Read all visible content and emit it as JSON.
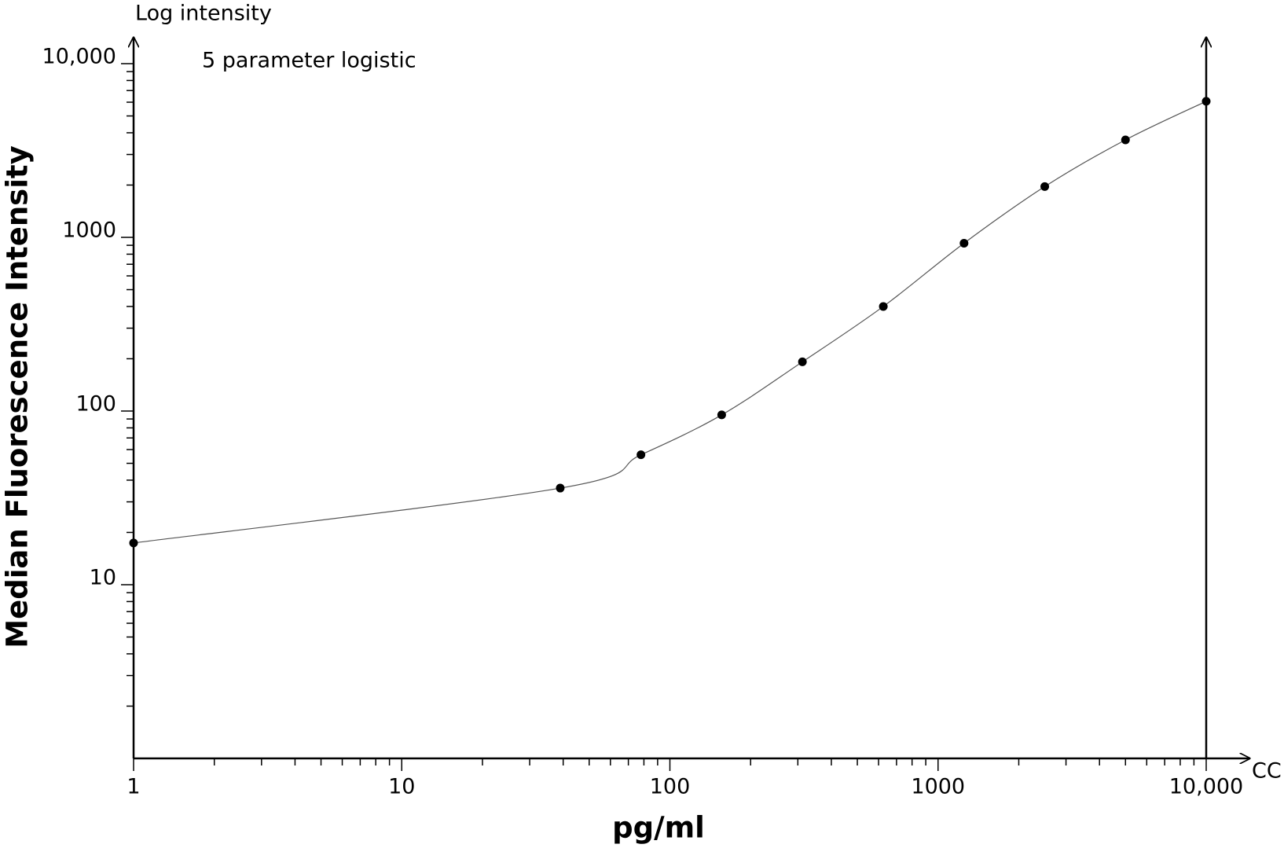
{
  "chart_data": {
    "type": "scatter",
    "y_axis_note": "Log intensity",
    "annotation": "5 parameter logistic",
    "ylabel": "Median Fluorescence Intensity",
    "xlabel": "pg/ml",
    "x_axis_note": "CC",
    "log_x": true,
    "log_y": true,
    "xlim": [
      1,
      10000
    ],
    "ylim": [
      1,
      10000
    ],
    "xticks": [
      1,
      10,
      100,
      1000,
      {
        "value": 10000,
        "label": "10,000"
      }
    ],
    "yticks": [
      10,
      100,
      1000,
      {
        "value": 10000,
        "label": "10,000"
      }
    ],
    "color": "#000000",
    "x": [
      1,
      39,
      78,
      156,
      312,
      625,
      1250,
      2500,
      5000,
      10000
    ],
    "values": [
      17.4,
      36,
      56,
      95,
      192,
      400,
      925,
      1960,
      3640,
      6070
    ]
  }
}
